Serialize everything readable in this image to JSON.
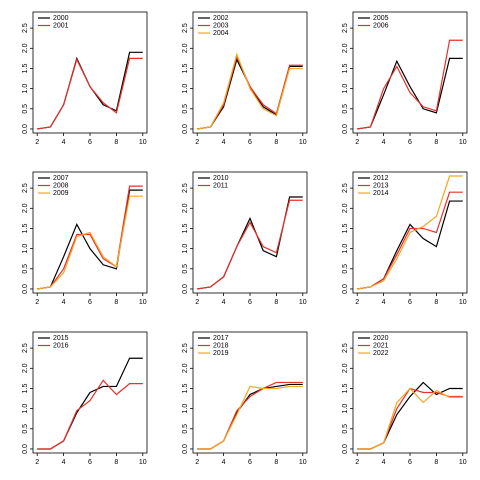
{
  "chart_data": [
    {
      "type": "line",
      "x": [
        2,
        3,
        4,
        5,
        6,
        7,
        8,
        9,
        10
      ],
      "xlim": [
        1.68,
        10.32
      ],
      "ylim": [
        -0.1,
        2.9
      ],
      "xticks": [
        2,
        4,
        6,
        8,
        10
      ],
      "yticks": [
        {
          "value": 0,
          "label": "0.0"
        },
        {
          "value": 0.5,
          "label": "0.5"
        },
        {
          "value": 1,
          "label": "1.0"
        },
        {
          "value": 1.5,
          "label": "1.5"
        },
        {
          "value": 2,
          "label": "2.0"
        },
        {
          "value": 2.5,
          "label": "2.5"
        }
      ],
      "legend": "top-left",
      "series": [
        {
          "name": "2000",
          "color": "#000000",
          "values": [
            0,
            0.05,
            0.6,
            1.75,
            1.05,
            0.6,
            0.45,
            1.9,
            1.9
          ]
        },
        {
          "name": "2001",
          "color": "#e8302a",
          "values": [
            0,
            0.05,
            0.6,
            1.72,
            1.05,
            0.65,
            0.4,
            1.75,
            1.75
          ]
        }
      ]
    },
    {
      "type": "line",
      "x": [
        2,
        3,
        4,
        5,
        6,
        7,
        8,
        9,
        10
      ],
      "xlim": [
        1.68,
        10.32
      ],
      "ylim": [
        -0.1,
        2.9
      ],
      "xticks": [
        2,
        4,
        6,
        8,
        10
      ],
      "yticks": [
        {
          "value": 0,
          "label": "0.0"
        },
        {
          "value": 0.5,
          "label": "0.5"
        },
        {
          "value": 1,
          "label": "1.0"
        },
        {
          "value": 1.5,
          "label": "1.5"
        },
        {
          "value": 2,
          "label": "2.0"
        },
        {
          "value": 2.5,
          "label": "2.5"
        }
      ],
      "legend": "top-left",
      "series": [
        {
          "name": "2002",
          "color": "#000000",
          "values": [
            0,
            0.05,
            0.55,
            1.72,
            1.05,
            0.55,
            0.35,
            1.55,
            1.55
          ]
        },
        {
          "name": "2003",
          "color": "#e8302a",
          "values": [
            0,
            0.05,
            0.6,
            1.8,
            1.05,
            0.6,
            0.38,
            1.58,
            1.58
          ]
        },
        {
          "name": "2004",
          "color": "#f5a623",
          "values": [
            0,
            0.05,
            0.65,
            1.85,
            1.0,
            0.5,
            0.33,
            1.5,
            1.5
          ]
        }
      ]
    },
    {
      "type": "line",
      "x": [
        2,
        3,
        4,
        5,
        6,
        7,
        8,
        9,
        10
      ],
      "xlim": [
        1.68,
        10.32
      ],
      "ylim": [
        -0.1,
        2.9
      ],
      "xticks": [
        2,
        4,
        6,
        8,
        10
      ],
      "yticks": [
        {
          "value": 0,
          "label": "0.0"
        },
        {
          "value": 0.5,
          "label": "0.5"
        },
        {
          "value": 1,
          "label": "1.0"
        },
        {
          "value": 1.5,
          "label": "1.5"
        },
        {
          "value": 2,
          "label": "2.0"
        },
        {
          "value": 2.5,
          "label": "2.5"
        }
      ],
      "legend": "top-left",
      "series": [
        {
          "name": "2005",
          "color": "#000000",
          "values": [
            0,
            0.05,
            0.85,
            1.68,
            1.05,
            0.5,
            0.4,
            1.75,
            1.75
          ]
        },
        {
          "name": "2006",
          "color": "#e8302a",
          "values": [
            0,
            0.05,
            1.0,
            1.55,
            0.9,
            0.55,
            0.45,
            2.2,
            2.2
          ]
        }
      ]
    },
    {
      "type": "line",
      "x": [
        2,
        3,
        4,
        5,
        6,
        7,
        8,
        9,
        10
      ],
      "xlim": [
        1.68,
        10.32
      ],
      "ylim": [
        -0.1,
        2.9
      ],
      "xticks": [
        2,
        4,
        6,
        8,
        10
      ],
      "yticks": [
        {
          "value": 0,
          "label": "0.0"
        },
        {
          "value": 0.5,
          "label": "0.5"
        },
        {
          "value": 1,
          "label": "1.0"
        },
        {
          "value": 1.5,
          "label": "1.5"
        },
        {
          "value": 2,
          "label": "2.0"
        },
        {
          "value": 2.5,
          "label": "2.5"
        }
      ],
      "legend": "top-left",
      "series": [
        {
          "name": "2007",
          "color": "#000000",
          "values": [
            0,
            0.05,
            0.8,
            1.6,
            1.0,
            0.6,
            0.5,
            2.45,
            2.45
          ]
        },
        {
          "name": "2008",
          "color": "#e8302a",
          "values": [
            0,
            0.05,
            0.5,
            1.35,
            1.35,
            0.75,
            0.55,
            2.55,
            2.55
          ]
        },
        {
          "name": "2009",
          "color": "#f5a623",
          "values": [
            0,
            0.05,
            0.4,
            1.3,
            1.4,
            0.8,
            0.55,
            2.3,
            2.3
          ]
        }
      ]
    },
    {
      "type": "line",
      "x": [
        2,
        3,
        4,
        5,
        6,
        7,
        8,
        9,
        10
      ],
      "xlim": [
        1.68,
        10.32
      ],
      "ylim": [
        -0.1,
        2.9
      ],
      "xticks": [
        2,
        4,
        6,
        8,
        10
      ],
      "yticks": [
        {
          "value": 0,
          "label": "0.0"
        },
        {
          "value": 0.5,
          "label": "0.5"
        },
        {
          "value": 1,
          "label": "1.0"
        },
        {
          "value": 1.5,
          "label": "1.5"
        },
        {
          "value": 2,
          "label": "2.0"
        },
        {
          "value": 2.5,
          "label": "2.5"
        }
      ],
      "legend": "top-left",
      "series": [
        {
          "name": "2010",
          "color": "#000000",
          "values": [
            0,
            0.05,
            0.3,
            1.05,
            1.75,
            0.95,
            0.8,
            2.28,
            2.28
          ]
        },
        {
          "name": "2011",
          "color": "#e8302a",
          "values": [
            0,
            0.05,
            0.3,
            1.05,
            1.65,
            1.05,
            0.9,
            2.2,
            2.2
          ]
        }
      ]
    },
    {
      "type": "line",
      "x": [
        2,
        3,
        4,
        5,
        6,
        7,
        8,
        9,
        10
      ],
      "xlim": [
        1.68,
        10.32
      ],
      "ylim": [
        -0.1,
        2.9
      ],
      "xticks": [
        2,
        4,
        6,
        8,
        10
      ],
      "yticks": [
        {
          "value": 0,
          "label": "0.0"
        },
        {
          "value": 0.5,
          "label": "0.5"
        },
        {
          "value": 1,
          "label": "1.0"
        },
        {
          "value": 1.5,
          "label": "1.5"
        },
        {
          "value": 2,
          "label": "2.0"
        },
        {
          "value": 2.5,
          "label": "2.5"
        }
      ],
      "legend": "top-left",
      "series": [
        {
          "name": "2012",
          "color": "#000000",
          "values": [
            0,
            0.05,
            0.25,
            0.95,
            1.6,
            1.25,
            1.05,
            2.18,
            2.18
          ]
        },
        {
          "name": "2013",
          "color": "#e8302a",
          "values": [
            0,
            0.05,
            0.25,
            0.85,
            1.5,
            1.5,
            1.4,
            2.4,
            2.4
          ]
        },
        {
          "name": "2014",
          "color": "#f5a623",
          "values": [
            0,
            0.05,
            0.2,
            0.75,
            1.4,
            1.55,
            1.8,
            2.8,
            2.8
          ]
        }
      ]
    },
    {
      "type": "line",
      "x": [
        2,
        3,
        4,
        5,
        6,
        7,
        8,
        9,
        10
      ],
      "xlim": [
        1.68,
        10.32
      ],
      "ylim": [
        -0.1,
        2.9
      ],
      "xticks": [
        2,
        4,
        6,
        8,
        10
      ],
      "yticks": [
        {
          "value": 0,
          "label": "0.0"
        },
        {
          "value": 0.5,
          "label": "0.5"
        },
        {
          "value": 1,
          "label": "1.0"
        },
        {
          "value": 1.5,
          "label": "1.5"
        },
        {
          "value": 2,
          "label": "2.0"
        },
        {
          "value": 2.5,
          "label": "2.5"
        }
      ],
      "legend": "top-left",
      "series": [
        {
          "name": "2015",
          "color": "#000000",
          "values": [
            0,
            0,
            0.2,
            0.9,
            1.4,
            1.55,
            1.55,
            2.25,
            2.25
          ]
        },
        {
          "name": "2016",
          "color": "#e8302a",
          "values": [
            0,
            0,
            0.2,
            0.95,
            1.2,
            1.7,
            1.35,
            1.62,
            1.62
          ]
        }
      ]
    },
    {
      "type": "line",
      "x": [
        2,
        3,
        4,
        5,
        6,
        7,
        8,
        9,
        10
      ],
      "xlim": [
        1.68,
        10.32
      ],
      "ylim": [
        -0.1,
        2.9
      ],
      "xticks": [
        2,
        4,
        6,
        8,
        10
      ],
      "yticks": [
        {
          "value": 0,
          "label": "0.0"
        },
        {
          "value": 0.5,
          "label": "0.5"
        },
        {
          "value": 1,
          "label": "1.0"
        },
        {
          "value": 1.5,
          "label": "1.5"
        },
        {
          "value": 2,
          "label": "2.0"
        },
        {
          "value": 2.5,
          "label": "2.5"
        }
      ],
      "legend": "top-left",
      "series": [
        {
          "name": "2017",
          "color": "#000000",
          "values": [
            0,
            0,
            0.2,
            0.9,
            1.35,
            1.5,
            1.55,
            1.6,
            1.6
          ]
        },
        {
          "name": "2018",
          "color": "#e8302a",
          "values": [
            0,
            0,
            0.2,
            0.95,
            1.3,
            1.5,
            1.65,
            1.65,
            1.65
          ]
        },
        {
          "name": "2019",
          "color": "#f5a623",
          "values": [
            0,
            0,
            0.2,
            0.85,
            1.55,
            1.5,
            1.5,
            1.55,
            1.55
          ]
        }
      ]
    },
    {
      "type": "line",
      "x": [
        2,
        3,
        4,
        5,
        6,
        7,
        8,
        9,
        10
      ],
      "xlim": [
        1.68,
        10.32
      ],
      "ylim": [
        -0.1,
        2.9
      ],
      "xticks": [
        2,
        4,
        6,
        8,
        10
      ],
      "yticks": [
        {
          "value": 0,
          "label": "0.0"
        },
        {
          "value": 0.5,
          "label": "0.5"
        },
        {
          "value": 1,
          "label": "1.0"
        },
        {
          "value": 1.5,
          "label": "1.5"
        },
        {
          "value": 2,
          "label": "2.0"
        },
        {
          "value": 2.5,
          "label": "2.5"
        }
      ],
      "legend": "top-left",
      "series": [
        {
          "name": "2020",
          "color": "#000000",
          "values": [
            0,
            0,
            0.15,
            0.85,
            1.3,
            1.65,
            1.35,
            1.5,
            1.5
          ]
        },
        {
          "name": "2021",
          "color": "#e8302a",
          "values": [
            0,
            0,
            0.15,
            1.0,
            1.5,
            1.4,
            1.4,
            1.3,
            1.3
          ]
        },
        {
          "name": "2022",
          "color": "#f5a623",
          "values": [
            0,
            0,
            0.15,
            1.15,
            1.5,
            1.15,
            1.45,
            1.28,
            1.28
          ]
        }
      ]
    }
  ]
}
